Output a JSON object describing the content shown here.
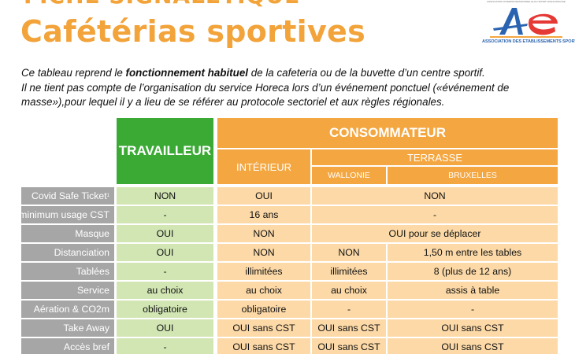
{
  "header": {
    "top_label": "FICHE SIGNALETIQUE",
    "title": "Cafétérias sportives"
  },
  "logo": {
    "tiny_text": "ASSOCIATION INTERPROFESSIONNELLE DU SPORT FRANCOPHONE",
    "caption": "ASSOCIATION DES ETABLISSEMENTS SPORTIFS",
    "colors": [
      "#2a63b0",
      "#e53935",
      "#f4a640",
      "#3aaa35"
    ]
  },
  "intro": {
    "line1_pre": "Ce tableau reprend le ",
    "line1_bold": "fonctionnement habituel",
    "line1_post": " de la cafeteria ou de la buvette d’un centre sportif.",
    "line2": "Il ne tient pas compte de l’organisation du service Horeca lors d’un événement ponctuel («événement de",
    "line3": "masse»),pour lequel il y a lieu de se référer au protocole sectoriel et aux règles régionales."
  },
  "table": {
    "headers": {
      "travailleur": "TRAVAILLEUR",
      "consommateur": "CONSOMMATEUR",
      "interieur": "INTÉRIEUR",
      "terrasse": "TERRASSE",
      "wallonie": "WALLONIE",
      "bruxelles": "BRUXELLES"
    },
    "rows": [
      {
        "label": "Covid Safe Ticket",
        "sup": "1",
        "travailleur": "NON",
        "interieur": "OUI",
        "terrasse_merged": "NON"
      },
      {
        "label": "Age minimum usage CST",
        "travailleur": "-",
        "interieur": "16 ans",
        "terrasse_merged": "-"
      },
      {
        "label": "Masque",
        "travailleur": "OUI",
        "interieur": "NON",
        "terrasse_merged": "OUI pour se déplacer"
      },
      {
        "label": "Distanciation",
        "travailleur": "OUI",
        "interieur": "NON",
        "wallonie": "NON",
        "bruxelles": "1,50 m entre les tables"
      },
      {
        "label": "Tablées",
        "travailleur": "-",
        "interieur": "illimitées",
        "wallonie": "illimitées",
        "bruxelles": "8 (plus de 12 ans)"
      },
      {
        "label": "Service",
        "travailleur": "au choix",
        "interieur": "au choix",
        "wallonie": "au choix",
        "bruxelles": "assis à table"
      },
      {
        "label": "Aération & CO2m",
        "travailleur": "obligatoire",
        "interieur": "obligatoire",
        "wallonie": "-",
        "bruxelles": "-"
      },
      {
        "label": "Take Away",
        "travailleur": "OUI",
        "interieur": "OUI sans CST",
        "wallonie": "OUI sans CST",
        "bruxelles": "OUI sans CST"
      },
      {
        "label": "Accès bref",
        "travailleur": "-",
        "interieur": "OUI sans CST",
        "wallonie": "OUI sans CST",
        "bruxelles": "OUI sans CST"
      }
    ]
  }
}
